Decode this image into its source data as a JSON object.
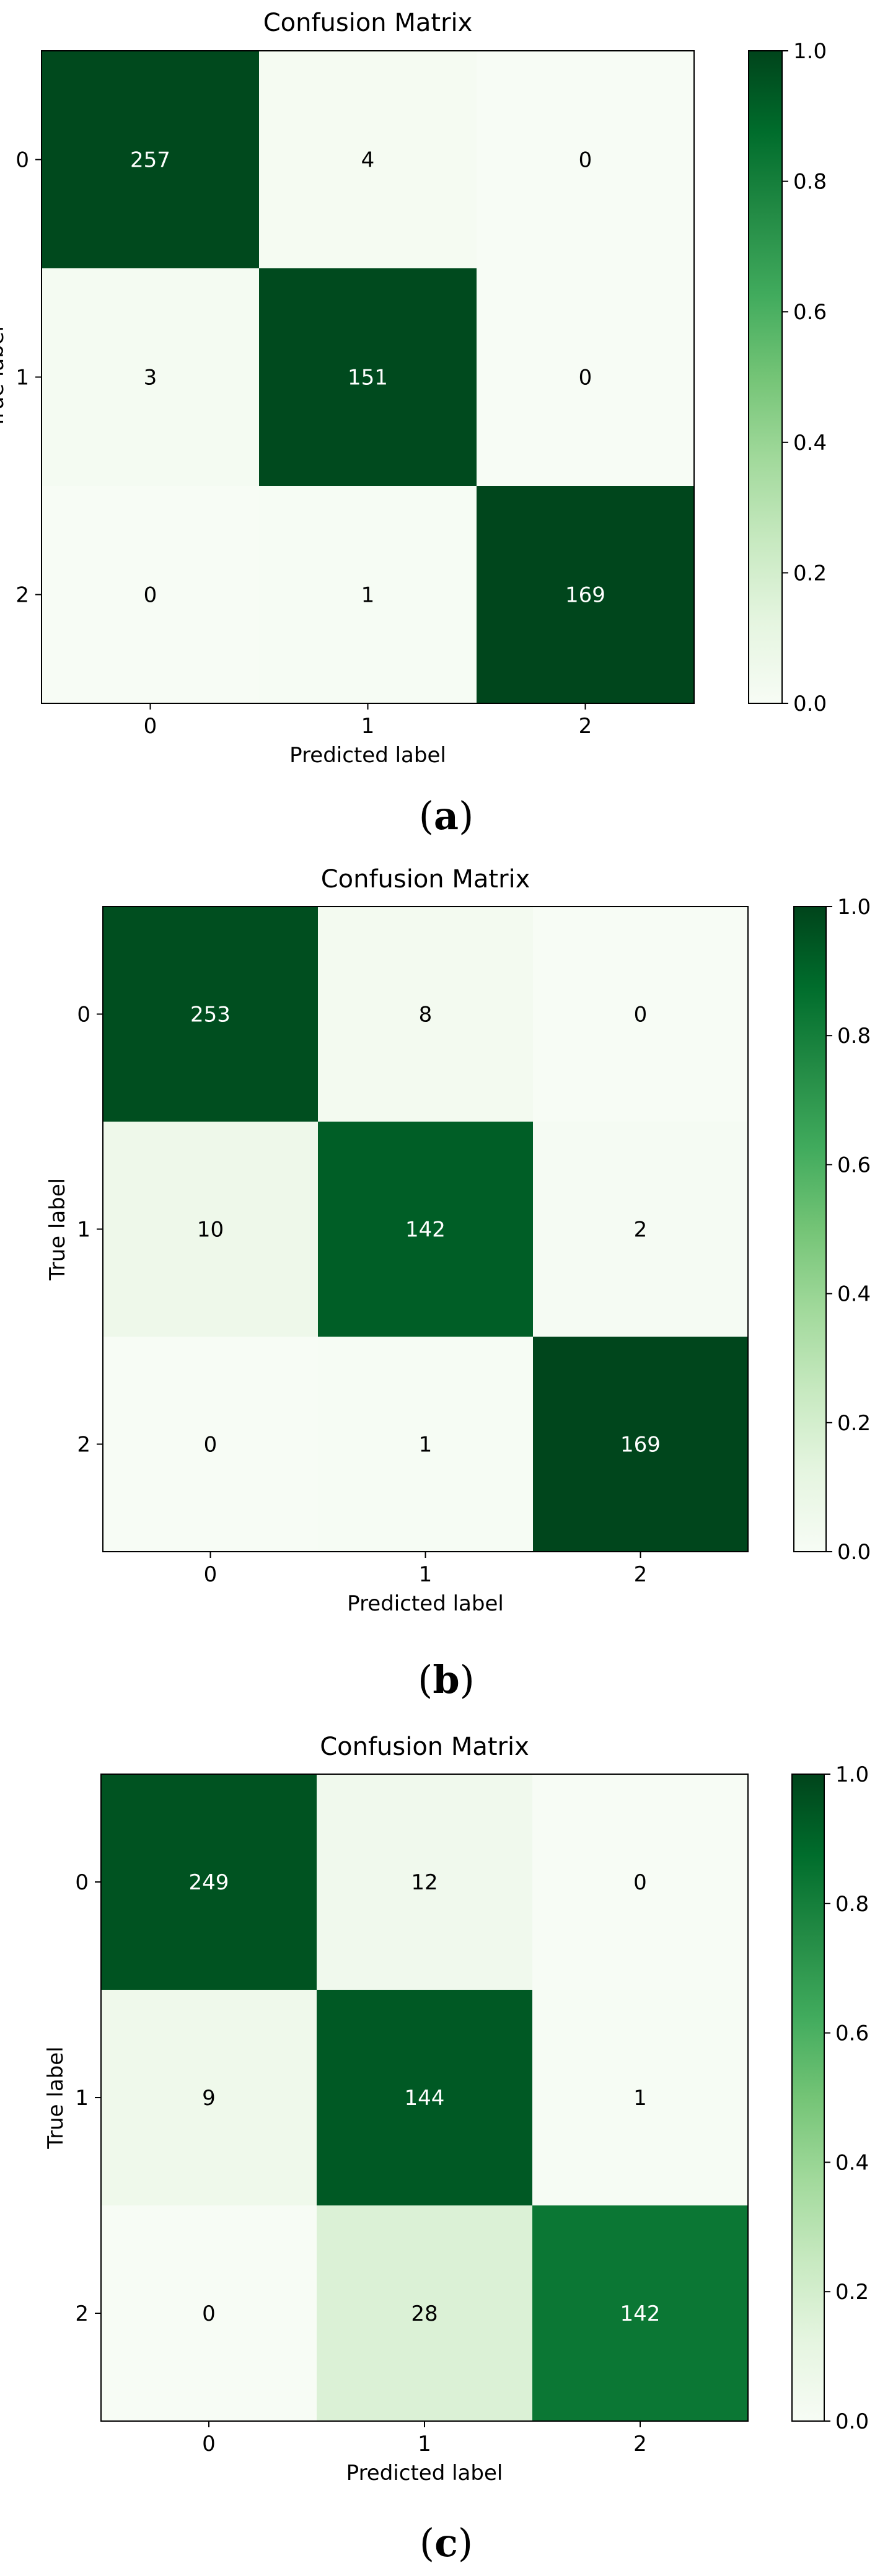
{
  "colormap": {
    "name": "Greens",
    "stops": [
      "#f7fcf5",
      "#e5f5e0",
      "#c7e9c0",
      "#a1d99b",
      "#74c476",
      "#41ab5d",
      "#238b45",
      "#006d2c",
      "#00441b"
    ],
    "text_on_dark": "#ffffff",
    "text_on_light": "#000000"
  },
  "chart_data": [
    {
      "type": "heatmap",
      "title": "Confusion Matrix",
      "xlabel": "Predicted label",
      "ylabel": "True label",
      "x_ticks": [
        "0",
        "1",
        "2"
      ],
      "y_ticks": [
        "0",
        "1",
        "2"
      ],
      "matrix": [
        [
          257,
          4,
          0
        ],
        [
          3,
          151,
          0
        ],
        [
          0,
          1,
          169
        ]
      ],
      "colorbar": {
        "range": [
          0.0,
          1.0
        ],
        "ticks": [
          "0.0",
          "0.2",
          "0.4",
          "0.6",
          "0.8",
          "1.0"
        ]
      },
      "caption_open": "(",
      "caption_letter": "a",
      "caption_close": ")"
    },
    {
      "type": "heatmap",
      "title": "Confusion Matrix",
      "xlabel": "Predicted label",
      "ylabel": "True label",
      "x_ticks": [
        "0",
        "1",
        "2"
      ],
      "y_ticks": [
        "0",
        "1",
        "2"
      ],
      "matrix": [
        [
          253,
          8,
          0
        ],
        [
          10,
          142,
          2
        ],
        [
          0,
          1,
          169
        ]
      ],
      "colorbar": {
        "range": [
          0.0,
          1.0
        ],
        "ticks": [
          "0.0",
          "0.2",
          "0.4",
          "0.6",
          "0.8",
          "1.0"
        ]
      },
      "caption_open": "(",
      "caption_letter": "b",
      "caption_close": ")"
    },
    {
      "type": "heatmap",
      "title": "Confusion Matrix",
      "xlabel": "Predicted label",
      "ylabel": "True label",
      "x_ticks": [
        "0",
        "1",
        "2"
      ],
      "y_ticks": [
        "0",
        "1",
        "2"
      ],
      "matrix": [
        [
          249,
          12,
          0
        ],
        [
          9,
          144,
          1
        ],
        [
          0,
          28,
          142
        ]
      ],
      "colorbar": {
        "range": [
          0.0,
          1.0
        ],
        "ticks": [
          "0.0",
          "0.2",
          "0.4",
          "0.6",
          "0.8",
          "1.0"
        ]
      },
      "caption_open": "(",
      "caption_letter": "c",
      "caption_close": ")"
    }
  ]
}
